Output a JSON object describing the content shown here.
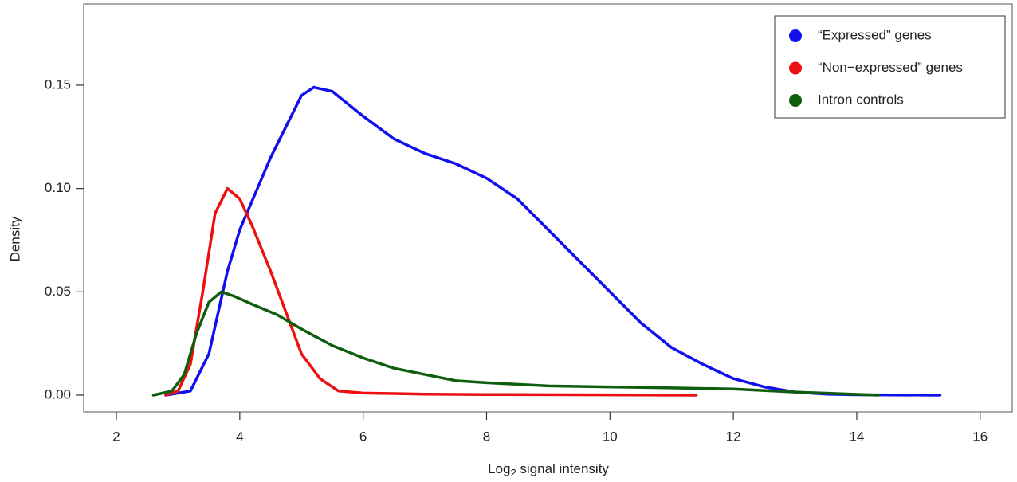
{
  "chart_data": {
    "type": "line",
    "x_label": {
      "base": "Log",
      "subscript": "2",
      "rest": " signal intensity"
    },
    "y_label": "Density",
    "xlim": [
      1.47,
      16.52
    ],
    "ylim": [
      -0.0081,
      0.1893
    ],
    "xticks": [
      2,
      4,
      6,
      8,
      10,
      12,
      14,
      16
    ],
    "yticks": [
      {
        "value": 0,
        "label": "0.00"
      },
      {
        "value": 0.05,
        "label": "0.05"
      },
      {
        "value": 0.1,
        "label": "0.10"
      },
      {
        "value": 0.15,
        "label": "0.15"
      }
    ],
    "legend": "top-right",
    "series": [
      {
        "name": "“Expressed” genes",
        "color": "#1010ee",
        "x": [
          2.8,
          3.2,
          3.5,
          3.8,
          4.0,
          4.5,
          5.0,
          5.2,
          5.5,
          6.0,
          6.5,
          7.0,
          7.5,
          8.0,
          8.5,
          9.0,
          9.5,
          10.0,
          10.5,
          11.0,
          11.5,
          12.0,
          12.5,
          13.0,
          13.5,
          14.0,
          15.35
        ],
        "values": [
          0,
          0.002,
          0.02,
          0.06,
          0.08,
          0.115,
          0.145,
          0.149,
          0.147,
          0.135,
          0.124,
          0.117,
          0.112,
          0.105,
          0.095,
          0.08,
          0.065,
          0.05,
          0.035,
          0.023,
          0.015,
          0.008,
          0.004,
          0.0015,
          0.0005,
          0.0002,
          0
        ]
      },
      {
        "name": "“Non−expressed” genes",
        "color": "#ee1010",
        "x": [
          2.8,
          3.0,
          3.2,
          3.4,
          3.6,
          3.8,
          4.0,
          4.2,
          4.5,
          4.8,
          5.0,
          5.3,
          5.6,
          6.0,
          7.0,
          8.0,
          11.4
        ],
        "values": [
          0,
          0.002,
          0.015,
          0.05,
          0.088,
          0.1,
          0.095,
          0.082,
          0.06,
          0.036,
          0.02,
          0.008,
          0.002,
          0.001,
          0.0005,
          0.0003,
          0
        ]
      },
      {
        "name": "Intron controls",
        "color": "#0e5e0e",
        "x": [
          2.6,
          2.9,
          3.1,
          3.3,
          3.5,
          3.7,
          3.9,
          4.2,
          4.6,
          5.0,
          5.5,
          6.0,
          6.5,
          7.0,
          7.5,
          8.0,
          9.0,
          10.0,
          11.0,
          12.0,
          13.0,
          14.35
        ],
        "values": [
          0,
          0.002,
          0.01,
          0.03,
          0.045,
          0.05,
          0.048,
          0.044,
          0.039,
          0.032,
          0.024,
          0.018,
          0.013,
          0.01,
          0.007,
          0.006,
          0.0045,
          0.004,
          0.0035,
          0.003,
          0.0015,
          0
        ]
      }
    ]
  }
}
